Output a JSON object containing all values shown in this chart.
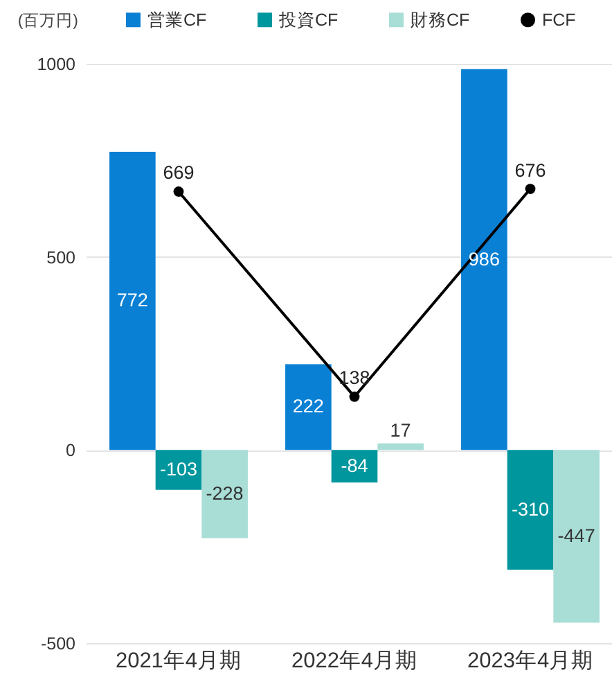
{
  "chart_data": {
    "type": "bar",
    "ylabel": "(百万円)",
    "categories": [
      "2021年4月期",
      "2022年4月期",
      "2023年4月期"
    ],
    "series": [
      {
        "name": "営業CF",
        "color": "#0a80d4",
        "values": [
          772,
          222,
          986
        ]
      },
      {
        "name": "投資CF",
        "color": "#00969d",
        "values": [
          -103,
          -84,
          -310
        ]
      },
      {
        "name": "財務CF",
        "color": "#a8ded6",
        "values": [
          -228,
          17,
          -447
        ]
      },
      {
        "name": "FCF",
        "type": "line",
        "color": "#000000",
        "marker": "circle",
        "values": [
          669,
          138,
          676
        ]
      }
    ],
    "ylim": [
      -500,
      1000
    ],
    "yticks": [
      -500,
      0,
      500,
      1000
    ],
    "grid": "y",
    "legend": "top",
    "data_labels": true
  }
}
